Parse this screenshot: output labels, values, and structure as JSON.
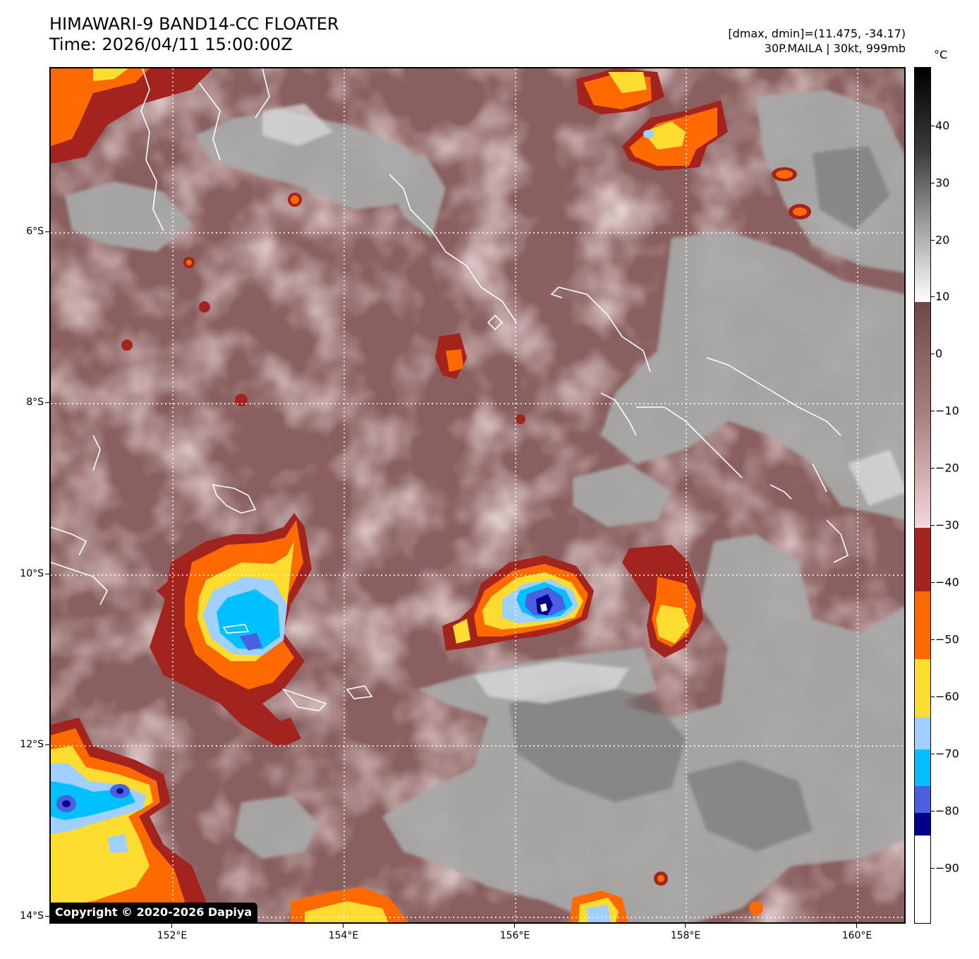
{
  "header": {
    "title": "HIMAWARI-9 BAND14-CC FLOATER",
    "time": "Time: 2026/04/11 15:00:00Z",
    "range": "[dmax, dmin]=(11.475, -34.17)",
    "storm": "30P.MAILA | 30kt, 999mb"
  },
  "map": {
    "lat_labels": [
      "6°S",
      "8°S",
      "10°S",
      "12°S",
      "14°S"
    ],
    "lon_labels": [
      "152°E",
      "154°E",
      "156°E",
      "158°E",
      "160°E"
    ],
    "copyright": "Copyright © 2020-2026 Dapiya",
    "colors": {
      "background_warm": "#7d5252",
      "background_cool": "#e8c7c7",
      "cloud_gray": "#a8a8a8",
      "red": "#a3231e",
      "orange": "#ff6a00",
      "yellow": "#ffdc30",
      "light_blue": "#a0d0ff",
      "cyan": "#00c0ff",
      "royal_blue": "#4a60e0",
      "navy": "#000090",
      "coastline": "#ffffff"
    }
  },
  "colorbar": {
    "unit": "°C",
    "ticks": [
      "40",
      "30",
      "20",
      "10",
      "0",
      "−10",
      "−20",
      "−30",
      "−40",
      "−50",
      "−60",
      "−70",
      "−80",
      "−90"
    ]
  }
}
